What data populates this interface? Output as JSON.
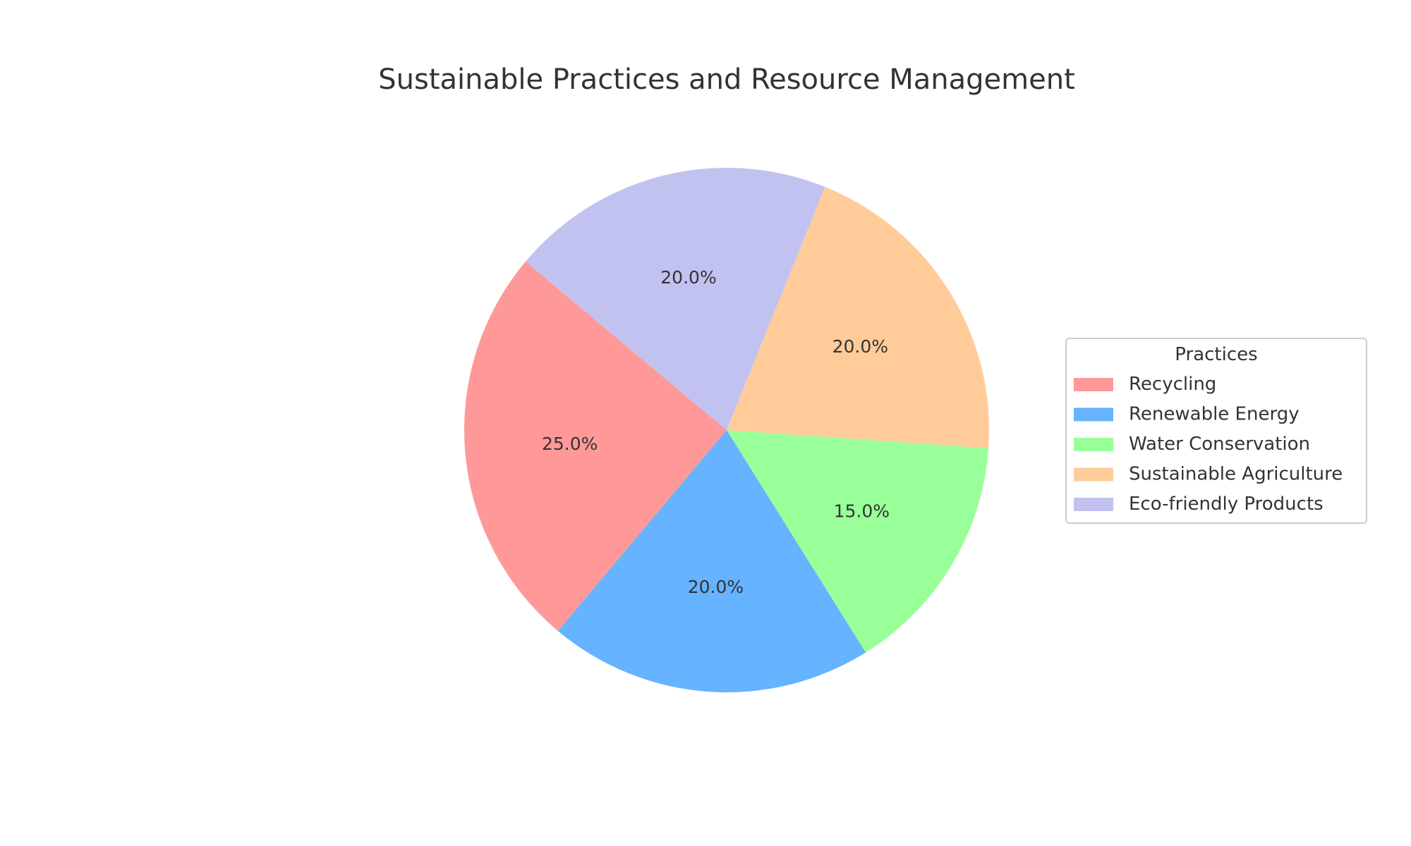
{
  "chart_data": {
    "type": "pie",
    "title": "Sustainable Practices and Resource Management",
    "legend_title": "Practices",
    "legend_position": "right",
    "start_angle_deg": 140,
    "direction": "counterclockwise",
    "categories": [
      "Recycling",
      "Renewable Energy",
      "Water Conservation",
      "Sustainable Agriculture",
      "Eco-friendly Products"
    ],
    "values": [
      25,
      20,
      15,
      20,
      20
    ],
    "value_labels": [
      "25.0%",
      "20.0%",
      "15.0%",
      "20.0%",
      "20.0%"
    ],
    "colors": [
      "#ff9999",
      "#66b3ff",
      "#99ff99",
      "#ffcc99",
      "#c2c2f0"
    ]
  }
}
